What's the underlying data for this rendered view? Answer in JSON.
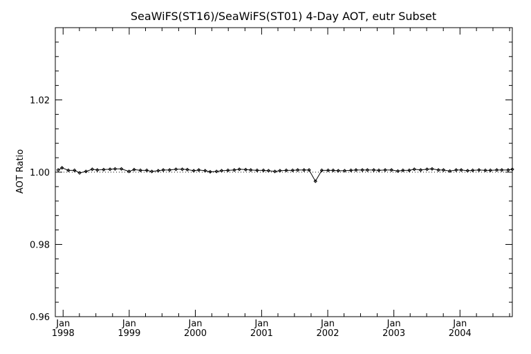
{
  "chart_data": {
    "type": "line",
    "title": "SeaWiFS(ST16)/SeaWiFS(ST01) 4-Day AOT, eutr Subset",
    "xlabel": "",
    "ylabel": "AOT Ratio",
    "ylim": [
      0.96,
      1.04
    ],
    "xlim": [
      "1997-11-19",
      "2004-10-16"
    ],
    "y_ticks": [
      {
        "value": 0.96,
        "label": "0.96"
      },
      {
        "value": 0.98,
        "label": "0.98"
      },
      {
        "value": 1.0,
        "label": "1.00"
      },
      {
        "value": 1.02,
        "label": "1.02"
      }
    ],
    "x_ticks": [
      {
        "date": "1998-01-01",
        "month": "Jan",
        "year": "1998"
      },
      {
        "date": "1999-01-01",
        "month": "Jan",
        "year": "1999"
      },
      {
        "date": "2000-01-01",
        "month": "Jan",
        "year": "2000"
      },
      {
        "date": "2001-01-01",
        "month": "Jan",
        "year": "2001"
      },
      {
        "date": "2002-01-01",
        "month": "Jan",
        "year": "2002"
      },
      {
        "date": "2003-01-01",
        "month": "Jan",
        "year": "2003"
      },
      {
        "date": "2004-01-01",
        "month": "Jan",
        "year": "2004"
      }
    ],
    "reference_line": {
      "value": 1.0,
      "style": "dotted"
    },
    "grid": false,
    "series": [
      {
        "marker": "diamond",
        "x": [
          "1997-12-05",
          "1997-12-26",
          "1998-01-30",
          "1998-03-05",
          "1998-04-02",
          "1998-05-07",
          "1998-06-11",
          "1998-07-09",
          "1998-08-13",
          "1998-09-17",
          "1998-10-15",
          "1998-11-19",
          "1998-12-31",
          "1999-01-28",
          "1999-03-04",
          "1999-04-08",
          "1999-05-06",
          "1999-06-10",
          "1999-07-08",
          "1999-08-12",
          "1999-09-16",
          "1999-10-21",
          "1999-11-18",
          "1999-12-23",
          "2000-01-20",
          "2000-02-24",
          "2000-03-23",
          "2000-04-27",
          "2000-05-25",
          "2000-06-29",
          "2000-08-03",
          "2000-08-31",
          "2000-10-05",
          "2000-11-02",
          "2000-12-07",
          "2001-01-11",
          "2001-02-08",
          "2001-03-15",
          "2001-04-12",
          "2001-05-17",
          "2001-06-21",
          "2001-07-19",
          "2001-08-23",
          "2001-09-20",
          "2001-10-25",
          "2001-11-29",
          "2002-01-03",
          "2002-01-31",
          "2002-02-28",
          "2002-04-04",
          "2002-05-09",
          "2002-06-06",
          "2002-07-11",
          "2002-08-08",
          "2002-09-12",
          "2002-10-10",
          "2002-11-14",
          "2002-12-19",
          "2003-01-23",
          "2003-02-20",
          "2003-03-27",
          "2003-04-24",
          "2003-05-29",
          "2003-07-03",
          "2003-07-31",
          "2003-09-04",
          "2003-10-02",
          "2003-11-06",
          "2003-12-11",
          "2004-01-08",
          "2004-02-12",
          "2004-03-11",
          "2004-04-15",
          "2004-05-20",
          "2004-06-17",
          "2004-07-22",
          "2004-08-19",
          "2004-09-23",
          "2004-10-16"
        ],
        "y": [
          1.0006,
          1.0012,
          1.0005,
          1.0005,
          0.9998,
          1.0002,
          1.0008,
          1.0006,
          1.0007,
          1.0008,
          1.0009,
          1.0009,
          1.0002,
          1.0007,
          1.0005,
          1.0005,
          1.0002,
          1.0004,
          1.0006,
          1.0006,
          1.0008,
          1.0008,
          1.0007,
          1.0004,
          1.0006,
          1.0004,
          1.0001,
          1.0002,
          1.0004,
          1.0005,
          1.0006,
          1.0008,
          1.0007,
          1.0006,
          1.0005,
          1.0005,
          1.0004,
          1.0002,
          1.0004,
          1.0005,
          1.0005,
          1.0006,
          1.0006,
          1.0006,
          0.9975,
          1.0005,
          1.0005,
          1.0005,
          1.0004,
          1.0004,
          1.0005,
          1.0006,
          1.0006,
          1.0006,
          1.0006,
          1.0005,
          1.0006,
          1.0006,
          1.0003,
          1.0005,
          1.0005,
          1.0008,
          1.0006,
          1.0008,
          1.0009,
          1.0006,
          1.0006,
          1.0003,
          1.0006,
          1.0006,
          1.0004,
          1.0005,
          1.0006,
          1.0005,
          1.0005,
          1.0006,
          1.0006,
          1.0006,
          1.0008
        ]
      }
    ]
  }
}
